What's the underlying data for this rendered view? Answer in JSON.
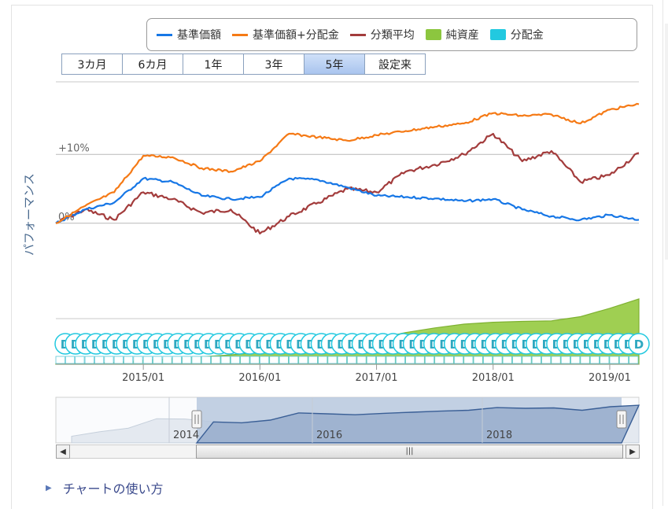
{
  "legend": {
    "items": [
      {
        "label": "基準価額",
        "color": "#1777e6",
        "kind": "line"
      },
      {
        "label": "基準価額+分配金",
        "color": "#f57a16",
        "kind": "line"
      },
      {
        "label": "分類平均",
        "color": "#a33c3c",
        "kind": "line"
      },
      {
        "label": "純資産",
        "color": "#8cc63f",
        "kind": "box"
      },
      {
        "label": "分配金",
        "color": "#22c9e0",
        "kind": "box"
      }
    ]
  },
  "range_buttons": [
    {
      "label": "3カ月"
    },
    {
      "label": "6カ月"
    },
    {
      "label": "1年"
    },
    {
      "label": "3年"
    },
    {
      "label": "5年",
      "active": true
    },
    {
      "label": "設定来"
    }
  ],
  "navigator": {
    "year_labels": [
      "2014",
      "2016",
      "2018"
    ]
  },
  "footer": {
    "howto_label": "チャートの使い方"
  },
  "chart_data": {
    "type": "line",
    "ylabel": "パフォーマンス",
    "y_unit": "%",
    "y_ticks": [
      {
        "value": 0,
        "label": "0%"
      },
      {
        "value": 10,
        "label": "+10%"
      }
    ],
    "ylim": [
      -3,
      21
    ],
    "xlim": [
      "2014-04",
      "2019-04"
    ],
    "x_ticks": [
      "2015/01",
      "2016/01",
      "2017/01",
      "2018/01",
      "2019/01"
    ],
    "x": [
      "2014-04",
      "2014-07",
      "2014-10",
      "2015-01",
      "2015-04",
      "2015-07",
      "2015-10",
      "2016-01",
      "2016-04",
      "2016-07",
      "2016-10",
      "2017-01",
      "2017-04",
      "2017-07",
      "2017-10",
      "2018-01",
      "2018-04",
      "2018-07",
      "2018-10",
      "2019-01",
      "2019-04"
    ],
    "series": [
      {
        "name": "基準価額",
        "color": "#1777e6",
        "values": [
          0,
          2.0,
          3.0,
          6.5,
          6.0,
          4.0,
          3.5,
          3.8,
          6.5,
          6.3,
          5.2,
          4.0,
          3.8,
          3.6,
          3.2,
          3.5,
          2.0,
          1.0,
          0.5,
          1.2,
          0.5
        ]
      },
      {
        "name": "基準価額+分配金",
        "color": "#f57a16",
        "values": [
          0,
          2.5,
          4.5,
          9.8,
          9.6,
          8.0,
          7.5,
          9.0,
          13.0,
          12.5,
          12.0,
          12.8,
          13.4,
          14.0,
          14.5,
          16.0,
          15.6,
          15.8,
          14.5,
          16.5,
          17.3
        ]
      },
      {
        "name": "分類平均",
        "color": "#a33c3c",
        "values": [
          0,
          2.0,
          0.5,
          4.5,
          3.5,
          1.5,
          2.0,
          -1.5,
          1.0,
          3.0,
          5.0,
          4.5,
          7.5,
          8.5,
          10.0,
          13.0,
          9.0,
          10.5,
          6.0,
          7.0,
          10.2
        ]
      },
      {
        "name": "純資産",
        "color": "#8cc63f",
        "kind": "area",
        "values": [
          0.1,
          0.2,
          0.4,
          0.8,
          1.2,
          1.6,
          2.0,
          2.6,
          3.2,
          3.8,
          4.5,
          5.5,
          6.8,
          7.8,
          8.6,
          9.0,
          9.2,
          9.3,
          10.2,
          12.0,
          14.0
        ]
      }
    ],
    "distribution_marker": {
      "name": "分配金",
      "color": "#22c9e0",
      "label": "D",
      "count": 57
    }
  }
}
